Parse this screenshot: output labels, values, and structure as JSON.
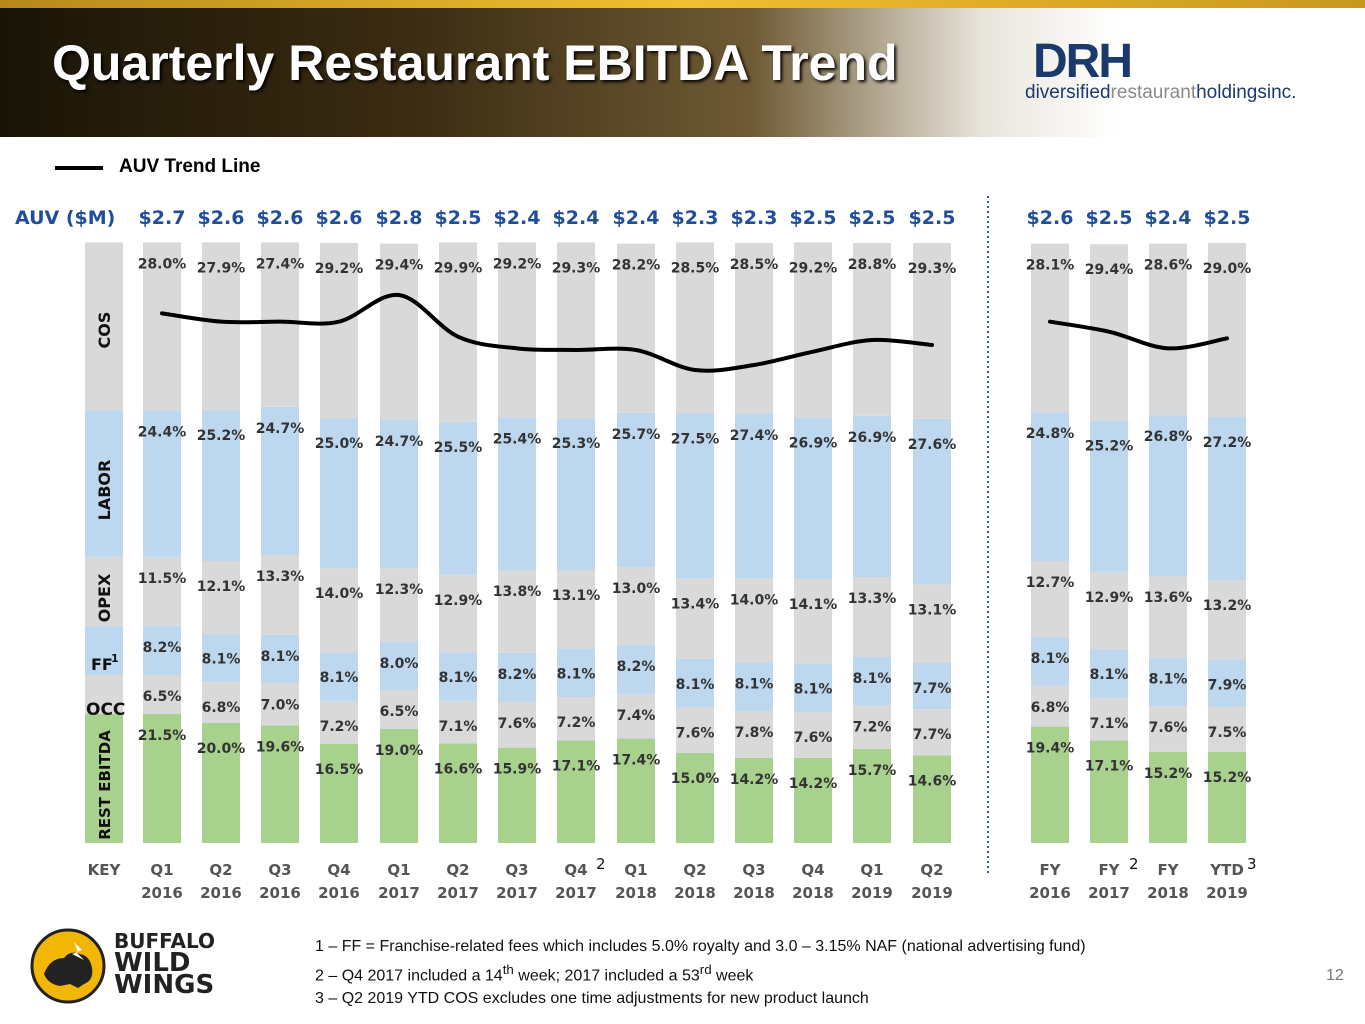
{
  "slide": {
    "title": "Quarterly Restaurant EBITDA Trend",
    "page_number": "12"
  },
  "logo": {
    "mark": "DRH",
    "name_part1": "diversified",
    "name_part2": "restaurant",
    "name_part3": "holdingsinc."
  },
  "brand_logo": {
    "line1": "BUFFALO",
    "line2": "WILD",
    "line3": "WINGS"
  },
  "legend": {
    "label": "AUV Trend Line"
  },
  "footnotes": {
    "f1": "1 – FF = Franchise-related fees which includes 5.0% royalty and 3.0 – 3.15% NAF (national advertising fund)",
    "f2_pre": "2 – Q4 2017 included a 14",
    "f2_sup1": "th",
    "f2_mid": " week; 2017 included a 53",
    "f2_sup2": "rd",
    "f2_post": " week",
    "f3": "3 – Q2 2019 YTD COS excludes one time adjustments for new product launch"
  },
  "colors": {
    "cos": "#d9d9d9",
    "labor": "#bdd7ee",
    "opex": "#d9d9d9",
    "ff": "#bdd7ee",
    "occ": "#d9d9d9",
    "ebitda": "#a9d18e",
    "line": "#000000",
    "title_blue": "#1f4e9b",
    "divider": "#2e5da8"
  },
  "chart_data": {
    "type": "stacked-bar",
    "auv_axis_label": "AUV ($M)",
    "key_label": "KEY",
    "row_labels": [
      "COS",
      "LABOR",
      "OPEX",
      "FF",
      "1",
      "OCC",
      "REST EBITDA"
    ],
    "categories": [
      {
        "l1": "Q1",
        "l2": "2016",
        "sup": ""
      },
      {
        "l1": "Q2",
        "l2": "2016",
        "sup": ""
      },
      {
        "l1": "Q3",
        "l2": "2016",
        "sup": ""
      },
      {
        "l1": "Q4",
        "l2": "2016",
        "sup": ""
      },
      {
        "l1": "Q1",
        "l2": "2017",
        "sup": ""
      },
      {
        "l1": "Q2",
        "l2": "2017",
        "sup": ""
      },
      {
        "l1": "Q3",
        "l2": "2017",
        "sup": ""
      },
      {
        "l1": "Q4",
        "l2": "2017",
        "sup": "2"
      },
      {
        "l1": "Q1",
        "l2": "2018",
        "sup": ""
      },
      {
        "l1": "Q2",
        "l2": "2018",
        "sup": ""
      },
      {
        "l1": "Q3",
        "l2": "2018",
        "sup": ""
      },
      {
        "l1": "Q4",
        "l2": "2018",
        "sup": ""
      },
      {
        "l1": "Q1",
        "l2": "2019",
        "sup": ""
      },
      {
        "l1": "Q2",
        "l2": "2019",
        "sup": ""
      },
      {
        "l1": "FY",
        "l2": "2016",
        "sup": ""
      },
      {
        "l1": "FY",
        "l2": "2017",
        "sup": "2"
      },
      {
        "l1": "FY",
        "l2": "2018",
        "sup": ""
      },
      {
        "l1": "YTD",
        "l2": "2019",
        "sup": "3"
      }
    ],
    "auv": [
      "$2.7",
      "$2.6",
      "$2.6",
      "$2.6",
      "$2.8",
      "$2.5",
      "$2.4",
      "$2.4",
      "$2.4",
      "$2.3",
      "$2.3",
      "$2.5",
      "$2.5",
      "$2.5",
      "$2.6",
      "$2.5",
      "$2.4",
      "$2.5"
    ],
    "auv_trend_quarterly": [
      2.66,
      2.61,
      2.61,
      2.61,
      2.77,
      2.52,
      2.45,
      2.44,
      2.44,
      2.32,
      2.35,
      2.43,
      2.5,
      2.47
    ],
    "auv_trend_annual": [
      2.61,
      2.55,
      2.45,
      2.51
    ],
    "auv_trend_range": [
      2.2,
      2.8
    ],
    "series": [
      {
        "name": "REST EBITDA",
        "key": "ebitda",
        "values": [
          21.5,
          20.0,
          19.6,
          16.5,
          19.0,
          16.6,
          15.9,
          17.1,
          17.4,
          15.0,
          14.2,
          14.2,
          15.7,
          14.6,
          19.4,
          17.1,
          15.2,
          15.2
        ]
      },
      {
        "name": "OCC",
        "key": "occ",
        "values": [
          6.5,
          6.8,
          7.0,
          7.2,
          6.5,
          7.1,
          7.6,
          7.2,
          7.4,
          7.6,
          7.8,
          7.6,
          7.2,
          7.7,
          6.8,
          7.1,
          7.6,
          7.5
        ]
      },
      {
        "name": "FF",
        "key": "ff",
        "values": [
          8.2,
          8.1,
          8.1,
          8.1,
          8.0,
          8.1,
          8.2,
          8.1,
          8.2,
          8.1,
          8.1,
          8.1,
          8.1,
          7.7,
          8.1,
          8.1,
          8.1,
          7.9
        ]
      },
      {
        "name": "OPEX",
        "key": "opex",
        "values": [
          11.5,
          12.1,
          13.3,
          14.0,
          12.3,
          12.9,
          13.8,
          13.1,
          13.0,
          13.4,
          14.0,
          14.1,
          13.3,
          13.1,
          12.7,
          12.9,
          13.6,
          13.2
        ]
      },
      {
        "name": "LABOR",
        "key": "labor",
        "values": [
          24.4,
          25.2,
          24.7,
          25.0,
          24.7,
          25.5,
          25.4,
          25.3,
          25.7,
          27.5,
          27.4,
          26.9,
          26.9,
          27.6,
          24.8,
          25.2,
          26.8,
          27.2
        ]
      },
      {
        "name": "COS",
        "key": "cos",
        "values": [
          28.0,
          27.9,
          27.4,
          29.2,
          29.4,
          29.9,
          29.2,
          29.3,
          28.2,
          28.5,
          28.5,
          29.2,
          28.8,
          29.3,
          28.1,
          29.4,
          28.6,
          29.0
        ]
      }
    ],
    "unit": "% of sales"
  }
}
